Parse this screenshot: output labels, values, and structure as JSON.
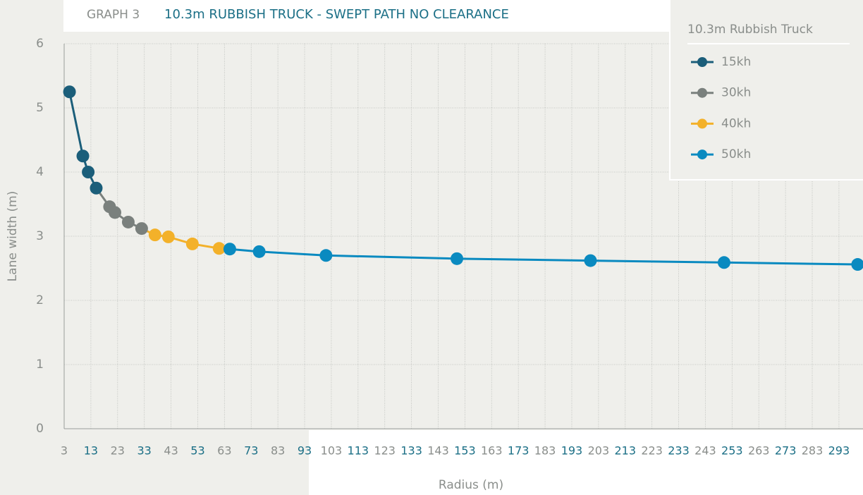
{
  "chart_data": {
    "type": "line",
    "label": "GRAPH 3",
    "title": "10.3m RUBBISH TRUCK - SWEPT PATH NO CLEARANCE",
    "xlabel": "Radius (m)",
    "ylabel": "Lane width (m)",
    "legend_title": "10.3m Rubbish Truck",
    "legend": "upper right",
    "grid": true,
    "xlim": [
      3,
      302
    ],
    "ylim": [
      0,
      6
    ],
    "xticks": [
      3,
      13,
      23,
      33,
      43,
      53,
      63,
      73,
      83,
      93,
      103,
      113,
      123,
      133,
      143,
      153,
      163,
      173,
      183,
      193,
      203,
      213,
      223,
      233,
      243,
      253,
      263,
      273,
      283,
      293
    ],
    "yticks": [
      0,
      1,
      2,
      3,
      4,
      5,
      6
    ],
    "series": [
      {
        "name": "15kh",
        "color": "#1b5e7a",
        "x": [
          5,
          10,
          12,
          15
        ],
        "values": [
          5.25,
          4.25,
          4.0,
          3.75
        ]
      },
      {
        "name": "30kh",
        "color": "#7a807d",
        "x": [
          20,
          22,
          27,
          32
        ],
        "values": [
          3.46,
          3.37,
          3.22,
          3.12
        ]
      },
      {
        "name": "40kh",
        "color": "#f3b12a",
        "x": [
          37,
          42,
          51,
          61
        ],
        "values": [
          3.02,
          2.99,
          2.88,
          2.81
        ]
      },
      {
        "name": "50kh",
        "color": "#0a8ac0",
        "x": [
          65,
          76,
          101,
          150,
          200,
          250,
          300
        ],
        "values": [
          2.8,
          2.76,
          2.7,
          2.65,
          2.62,
          2.59,
          2.56
        ]
      }
    ]
  }
}
